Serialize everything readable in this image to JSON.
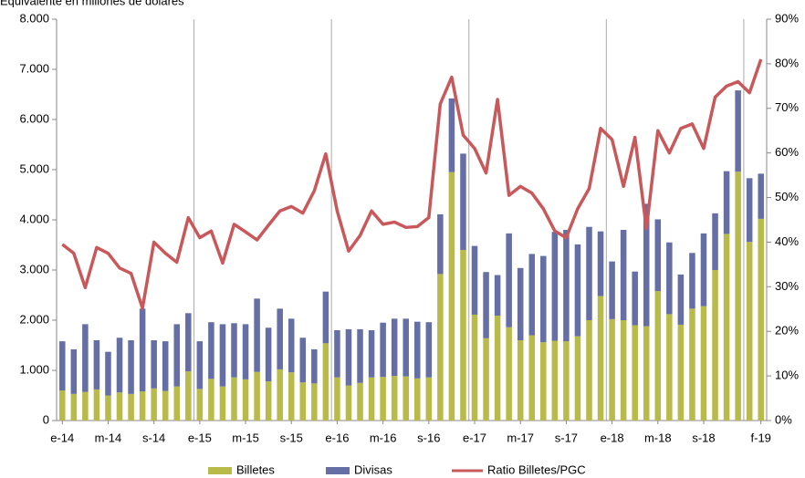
{
  "chart_data": {
    "type": "bar",
    "subtitle": "Equivalente en millones de dólares",
    "categories": [
      "e-14",
      null,
      null,
      null,
      "m-14",
      null,
      null,
      null,
      "s-14",
      null,
      null,
      null,
      "e-15",
      null,
      null,
      null,
      "m-15",
      null,
      null,
      null,
      "s-15",
      null,
      null,
      null,
      "e-16",
      null,
      null,
      null,
      "m-16",
      null,
      null,
      null,
      "s-16",
      null,
      null,
      null,
      "e-17",
      null,
      null,
      null,
      "m-17",
      null,
      null,
      null,
      "s-17",
      null,
      null,
      null,
      "e-18",
      null,
      null,
      null,
      "m-18",
      null,
      null,
      null,
      "s-18",
      null,
      null,
      null,
      null,
      "f-19"
    ],
    "series": [
      {
        "name": "Billetes",
        "type": "bar",
        "color": "#b8ba4a",
        "values": [
          600,
          530,
          570,
          620,
          500,
          560,
          530,
          580,
          640,
          590,
          680,
          980,
          630,
          830,
          680,
          860,
          820,
          970,
          780,
          1020,
          960,
          760,
          740,
          1540,
          860,
          700,
          750,
          860,
          870,
          890,
          880,
          840,
          860,
          2920,
          4950,
          3400,
          2110,
          1640,
          2090,
          1860,
          1600,
          1700,
          1560,
          1590,
          1580,
          1680,
          2000,
          2480,
          2020,
          2000,
          1900,
          1880,
          2580,
          2120,
          1910,
          2230,
          2280,
          3000,
          3720,
          4960,
          3560,
          4020
        ]
      },
      {
        "name": "Divisas",
        "type": "bar",
        "color": "#666fa5",
        "values": [
          980,
          890,
          1350,
          980,
          870,
          1090,
          1070,
          1650,
          960,
          990,
          1240,
          1160,
          950,
          1130,
          1240,
          1080,
          1100,
          1460,
          1070,
          1210,
          1070,
          890,
          680,
          1030,
          940,
          1120,
          1070,
          940,
          1080,
          1140,
          1150,
          1130,
          1100,
          1190,
          1470,
          1920,
          1370,
          1320,
          810,
          1870,
          1440,
          1620,
          1720,
          2170,
          2220,
          1830,
          1860,
          1290,
          1150,
          1800,
          1070,
          2440,
          1430,
          1430,
          1000,
          1110,
          1450,
          1130,
          1250,
          1620,
          1270,
          900
        ]
      },
      {
        "name": "Ratio Billetes/PGC",
        "type": "line",
        "axis": "y2",
        "color": "#c9585b",
        "values": [
          39.5,
          37.5,
          29.8,
          38.8,
          37.5,
          34.2,
          33,
          25.2,
          40,
          37.5,
          35.5,
          45.5,
          41,
          42.5,
          35.3,
          44,
          42.3,
          40.5,
          43.8,
          47,
          48,
          46.5,
          51.5,
          59.8,
          47,
          38,
          41.5,
          47,
          44,
          44.5,
          43.3,
          43.5,
          45.5,
          71,
          77,
          64,
          61,
          55.5,
          72,
          50.5,
          52.5,
          51,
          47.5,
          42.5,
          41,
          47.5,
          52,
          65.5,
          63,
          52.5,
          63.5,
          43,
          65,
          60,
          65.5,
          66.5,
          61,
          72.5,
          75,
          76,
          73.5,
          81
        ]
      }
    ],
    "ylim": [
      0,
      8000
    ],
    "yticks": [
      0,
      {
        "value": 1000,
        "label": "1.000"
      },
      {
        "value": 2000,
        "label": "2.000"
      },
      {
        "value": 3000,
        "label": "3.000"
      },
      {
        "value": 4000,
        "label": "4.000"
      },
      {
        "value": 5000,
        "label": "5.000"
      },
      {
        "value": 6000,
        "label": "6.000"
      },
      {
        "value": 7000,
        "label": "7.000"
      },
      {
        "value": 8000,
        "label": "8.000"
      }
    ],
    "y2lim": [
      0,
      90
    ],
    "y2ticks": [
      {
        "value": 0,
        "label": "0%"
      },
      {
        "value": 10,
        "label": "10%"
      },
      {
        "value": 20,
        "label": "20%"
      },
      {
        "value": 30,
        "label": "30%"
      },
      {
        "value": 40,
        "label": "40%"
      },
      {
        "value": 50,
        "label": "50%"
      },
      {
        "value": 60,
        "label": "60%"
      },
      {
        "value": 70,
        "label": "70%"
      },
      {
        "value": 80,
        "label": "80%"
      },
      {
        "value": 90,
        "label": "90%"
      }
    ],
    "legend": "bottom"
  }
}
